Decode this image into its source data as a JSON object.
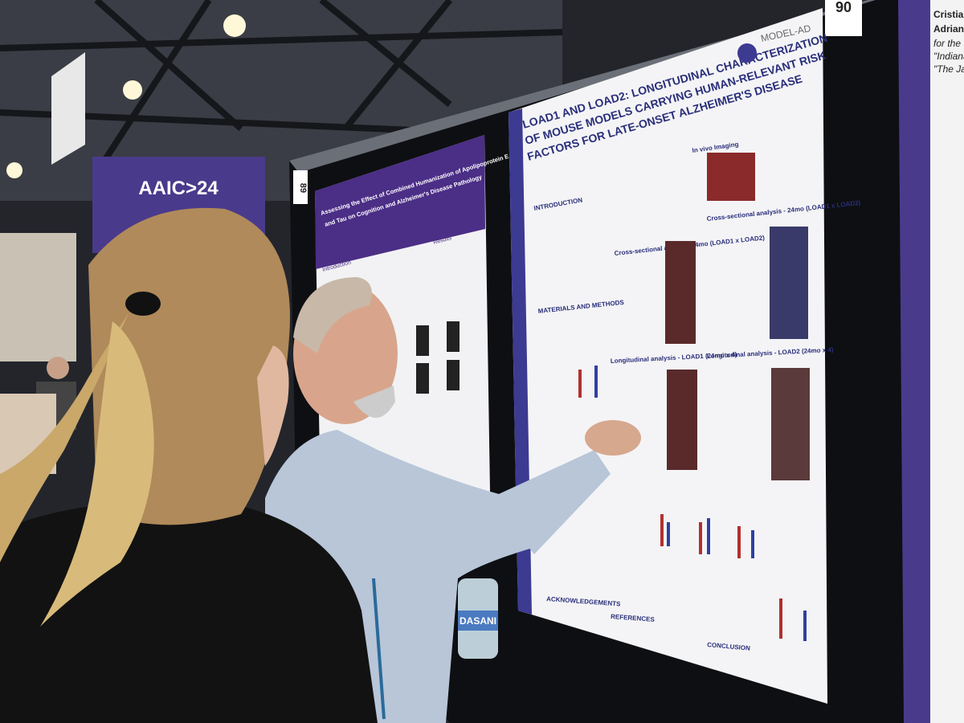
{
  "banner": {
    "title": "AAIC>24"
  },
  "boards": {
    "left_number": "89",
    "right_number": "90"
  },
  "poster_left": {
    "title_lines": [
      "Assessing the Effect of Combined Humanization of Apolipoprotein E and Amyloid",
      "and Tau on Cognition and Alzheimer's Disease Pathology"
    ],
    "sections": [
      "Introduction",
      "Results"
    ]
  },
  "poster_main": {
    "title_lines": [
      "LOAD1 AND LOAD2: LONGITUDINAL CHARACTERIZATION",
      "OF MOUSE MODELS CARRYING HUMAN-RELEVANT RISK",
      "FACTORS FOR LATE-ONSET ALZHEIMER'S DISEASE"
    ],
    "logo": "MODEL-AD",
    "sections": [
      "INTRODUCTION",
      "In vivo Imaging",
      "MATERIALS AND METHODS",
      "Cross-sectional analysis - 4mo (LOAD1 x LOAD2)",
      "Cross-sectional analysis - 24mo (LOAD1 x LOAD2)",
      "Longitudinal analysis - LOAD1 (24mo x 4)",
      "Longitudinal analysis - LOAD2 (24mo x 4)",
      "ACKNOWLEDGEMENTS",
      "REFERENCES",
      "CONCLUSION"
    ]
  },
  "poster_right": {
    "lines": [
      "Cristian",
      "Adrian C",
      "for the IU",
      "\"Indiana U",
      "\"The Jacks"
    ]
  },
  "bottle": {
    "label": "DASANI"
  }
}
